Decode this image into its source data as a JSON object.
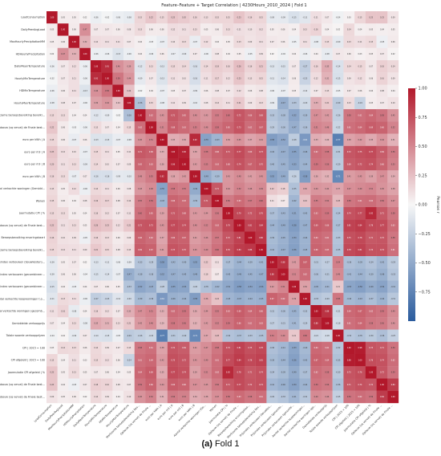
{
  "chart_data": {
    "type": "heatmap",
    "title": "Feature–Feature + Target Correlation | 4230Hours_2010_2024 | Fold 1",
    "rows": [
      "LoadConsumption",
      "DailyPeerAvgLoad",
      "MaxHourlyPrecipitationMM",
      "HDHourlyPrecipitation",
      "DailyMeanTemperature",
      "HourlyMinTemperature",
      "HDMinTemperature",
      "HourlyMaxTemperature",
      "Werkzame beroepsbevolking bevolkingsomvang",
      "Opbouw (sq verval) de Finale bestedingen/Finaal & volumegemiddelde",
      "euro per kWh | A",
      "euro per m3 | A",
      "euro per m3 | B",
      "euro per kWh | B",
      "Aantal verkochte woningen (Gemiddelde) t.o.v. een jaar eerder",
      "Wonen",
      "Jaarmutatie CPI | %",
      "Opbouw (sq verval) de Finale bestedingen (Finale) bestedingen (Bruto) van...",
      "Beroepsbevolking ervaringskaart",
      "Werkzame beroepsbevolking bevolkingsomvang %",
      "Prijsindex verbouwen (bouwkosten) bestaande koopwoningen",
      "Prijsindex verbouwen (gecombineerd) t.o.v. voorgaande periode",
      "Prijsindex verbouwen (gecombineerd) t.o.v. een jaar eerder",
      "Aantal verkochte koopwoningen t.o.v. voorgaande periode",
      "Aantal verkochte woningen (gecombineerd) t.o.v. een jaar eerder",
      "Gemiddelde verkoopprijs",
      "Totale waarde verkoopprijzen",
      "CPI | 2015 = 100",
      "CPI afgeleid | 2015 = 100",
      "Jaarmutatie CPI afgeleid | %",
      "Opbouw (sq verval) de Finale bestedingen (a) (echtnaar ren) Finale bestedingen",
      "Opbouw (sq verval) de Finale bestedingen (echtnaar) van Finale bestedingen"
    ],
    "columns": [
      "LoadConsumption",
      "DailyPeerAvgLoad",
      "MaxHourlyPrecipitationMM",
      "HDHourlyPrecipitation",
      "DailyMeanTemperature",
      "HourlyMinTemperature",
      "HDMinTemperature",
      "HourlyMaxTemperature",
      "Werkzame beroepsbevolking bevolkingsomvang",
      "Opbouw (sq verval) de Finale bestedingen/Finaal & volumegemiddelde",
      "euro per kWh | A",
      "euro per m3 | A",
      "euro per m3 | B",
      "euro per kWh | B",
      "Aantal verkochte woningen (Gemiddelde) t.o.v. een jaar eerder",
      "Wonen",
      "Jaarmutatie CPI | %",
      "Opbouw (sq verval) de Finale bestedingen (Finale) bestedingen (Bruto) van...",
      "Beroepsbevolking ervaringskaart",
      "Werkzame beroepsbevolking bevolkingsomvang %",
      "Prijsindex verbouwen (bouwkosten) bestaande koopwoningen",
      "Prijsindex verbouwen (gecombineerd) t.o.v. voorgaande periode",
      "Prijsindex verbouwen (gecombineerd) t.o.v. een jaar eerder",
      "Aantal verkochte koopwoningen t.o.v. voorgaande periode",
      "Aantal verkochte woningen (gecombineerd) t.o.v. een jaar eerder",
      "Gemiddelde verkoopprijs",
      "Totale waarde verkoopprijzen",
      "CPI | 2015 = 100",
      "CPI afgeleid | 2015 = 100",
      "Jaarmutatie CPI afgeleid | %",
      "Opbouw (sq verval) de Finale bestedingen (a) (echtnaar ren) Finale bestedingen",
      "Opbouw (sq verval) de Finale bestedingen (echtnaar) van Finale bestedingen"
    ],
    "values": [
      [
        1.0,
        0.05,
        0.05,
        0.02,
        -0.06,
        -0.02,
        -0.06,
        -0.08,
        0.15,
        0.22,
        0.15,
        0.23,
        0.2,
        0.16,
        0.13,
        0.15,
        0.15,
        0.23,
        0.16,
        0.15,
        -0.09,
        -0.09,
        -0.15,
        -0.11,
        0.11,
        0.07,
        -0.04,
        0.03,
        0.15,
        0.23,
        0.23,
        0.09
      ],
      [
        0.05,
        1.0,
        0.06,
        0.47,
        0.07,
        0.07,
        0.06,
        0.08,
        0.13,
        0.06,
        0.06,
        0.12,
        0.11,
        0.13,
        0.05,
        0.06,
        0.13,
        0.11,
        0.1,
        0.12,
        0.05,
        0.06,
        0.04,
        0.13,
        0.16,
        0.04,
        0.02,
        0.14,
        0.04,
        0.05,
        0.04,
        0.05
      ],
      [
        0.05,
        0.06,
        1.0,
        0.32,
        0.12,
        0.11,
        0.11,
        0.07,
        0.04,
        -0.03,
        -0.07,
        0.1,
        0.13,
        -0.07,
        0.12,
        0.04,
        0.05,
        0.13,
        0.09,
        0.11,
        0.07,
        0.06,
        -0.05,
        0.11,
        -0.08,
        0.13,
        -0.09,
        0.13,
        0.11,
        0.13,
        -0.05,
        0.06
      ],
      [
        0.02,
        0.47,
        0.32,
        1.0,
        -0.06,
        -0.06,
        -0.13,
        -0.06,
        0.04,
        -0.06,
        0.06,
        -0.07,
        -0.09,
        0.07,
        -0.06,
        0.08,
        0.04,
        0.05,
        -0.05,
        0.09,
        0.02,
        -0.04,
        0.04,
        -0.06,
        0.04,
        -0.08,
        0.07,
        0.06,
        0.03,
        0.05,
        0.07,
        0.02
      ],
      [
        -0.06,
        0.07,
        0.12,
        -0.06,
        1.0,
        0.91,
        0.46,
        0.39,
        -0.12,
        0.13,
        -0.13,
        0.15,
        0.14,
        -0.16,
        0.14,
        0.19,
        0.16,
        0.26,
        0.16,
        0.21,
        -0.13,
        -0.15,
        0.07,
        -0.27,
        0.16,
        0.35,
        -0.14,
        0.14,
        0.15,
        0.07,
        0.18,
        0.14
      ],
      [
        -0.02,
        0.07,
        0.11,
        -0.06,
        0.91,
        1.0,
        0.58,
        0.44,
        -0.09,
        0.07,
        -0.13,
        0.11,
        0.1,
        -0.16,
        0.11,
        0.17,
        0.12,
        0.23,
        0.13,
        0.15,
        -0.11,
        -0.14,
        0.06,
        -0.23,
        0.12,
        0.31,
        -0.15,
        0.09,
        0.12,
        0.06,
        0.16,
        0.09
      ],
      [
        -0.06,
        0.06,
        0.11,
        -0.13,
        0.46,
        0.58,
        1.0,
        0.24,
        -0.02,
        0.04,
        -0.07,
        0.05,
        0.07,
        -0.09,
        0.06,
        0.08,
        0.07,
        0.12,
        0.06,
        0.08,
        -0.06,
        -0.07,
        0.05,
        -0.12,
        0.07,
        0.13,
        -0.05,
        0.07,
        0.06,
        0.04,
        0.08,
        0.04
      ],
      [
        -0.08,
        0.08,
        0.07,
        -0.06,
        0.39,
        0.44,
        0.24,
        1.0,
        -0.36,
        0.15,
        -0.08,
        0.11,
        0.09,
        -0.1,
        0.08,
        0.14,
        0.11,
        0.21,
        0.09,
        0.13,
        -0.09,
        -0.47,
        -0.33,
        -0.2,
        0.33,
        0.21,
        -0.29,
        0.13,
        -0.24,
        0.05,
        0.07,
        0.1
      ],
      [
        0.15,
        0.13,
        0.04,
        0.04,
        -0.12,
        -0.09,
        -0.02,
        -0.36,
        1.0,
        0.62,
        0.45,
        0.71,
        0.65,
        0.48,
        0.43,
        0.55,
        0.6,
        0.72,
        0.66,
        0.69,
        -0.33,
        -0.38,
        -0.52,
        -0.39,
        0.47,
        0.42,
        -0.26,
        0.58,
        0.61,
        0.64,
        0.59,
        0.45
      ],
      [
        0.22,
        0.06,
        -0.03,
        -0.06,
        0.13,
        0.07,
        0.04,
        0.15,
        0.62,
        1.0,
        0.51,
        0.68,
        0.63,
        0.55,
        0.48,
        0.59,
        0.65,
        0.73,
        0.62,
        0.67,
        -0.29,
        -0.36,
        -0.47,
        -0.36,
        0.51,
        0.48,
        -0.22,
        0.61,
        0.64,
        0.69,
        0.66,
        0.52
      ],
      [
        0.15,
        0.06,
        -0.07,
        0.06,
        -0.13,
        -0.13,
        -0.07,
        -0.08,
        0.45,
        0.51,
        1.0,
        0.33,
        0.36,
        0.92,
        -0.55,
        -0.43,
        0.39,
        0.45,
        0.37,
        0.41,
        -0.58,
        -0.52,
        -0.28,
        -0.61,
        0.33,
        0.29,
        -0.77,
        0.38,
        0.42,
        0.35,
        0.44,
        0.31
      ],
      [
        0.23,
        0.12,
        0.1,
        -0.07,
        0.15,
        0.11,
        0.05,
        0.11,
        0.71,
        0.68,
        0.33,
        1.0,
        0.96,
        0.38,
        0.58,
        0.66,
        0.71,
        0.77,
        0.69,
        0.73,
        -0.42,
        -0.47,
        -0.55,
        -0.46,
        0.62,
        0.58,
        -0.31,
        0.72,
        0.75,
        0.77,
        0.69,
        0.56
      ],
      [
        0.2,
        0.11,
        0.13,
        -0.09,
        0.14,
        0.1,
        0.07,
        0.09,
        0.65,
        0.63,
        0.36,
        0.96,
        1.0,
        0.42,
        0.55,
        0.63,
        0.68,
        0.74,
        0.67,
        0.7,
        -0.4,
        -0.45,
        -0.53,
        -0.44,
        0.59,
        0.56,
        -0.29,
        0.69,
        0.72,
        0.74,
        0.66,
        0.53
      ],
      [
        0.16,
        0.13,
        -0.07,
        0.07,
        -0.16,
        -0.16,
        -0.09,
        -0.1,
        0.48,
        0.55,
        0.92,
        0.38,
        0.42,
        1.0,
        -0.49,
        -0.39,
        0.43,
        0.48,
        0.41,
        0.45,
        -0.55,
        -0.49,
        -0.26,
        -0.58,
        0.36,
        0.32,
        -0.71,
        0.41,
        0.45,
        0.39,
        0.47,
        0.34
      ],
      [
        0.13,
        0.05,
        0.12,
        -0.06,
        0.14,
        0.11,
        0.06,
        0.08,
        0.43,
        0.48,
        -0.55,
        0.58,
        0.55,
        -0.49,
        1.0,
        0.71,
        0.44,
        0.52,
        0.46,
        0.49,
        0.22,
        0.18,
        -0.35,
        0.36,
        0.44,
        0.42,
        0.37,
        0.47,
        0.49,
        0.51,
        0.45,
        0.38
      ],
      [
        0.15,
        0.06,
        0.04,
        0.08,
        0.19,
        0.17,
        0.08,
        0.14,
        0.55,
        0.59,
        -0.43,
        0.66,
        0.63,
        -0.39,
        0.71,
        1.0,
        0.56,
        0.63,
        0.57,
        0.6,
        0.11,
        0.07,
        -0.42,
        0.24,
        0.55,
        0.52,
        0.28,
        0.58,
        0.61,
        0.62,
        0.56,
        0.47
      ],
      [
        0.15,
        0.13,
        0.05,
        0.04,
        0.16,
        0.12,
        0.07,
        0.11,
        0.6,
        0.65,
        0.39,
        0.71,
        0.68,
        0.43,
        0.44,
        0.56,
        1.0,
        0.79,
        0.72,
        0.76,
        -0.37,
        -0.43,
        -0.51,
        -0.43,
        0.63,
        0.59,
        -0.34,
        0.74,
        0.77,
        0.92,
        0.71,
        0.58
      ],
      [
        0.23,
        0.11,
        0.13,
        0.05,
        0.26,
        0.23,
        0.12,
        0.21,
        0.72,
        0.73,
        0.45,
        0.77,
        0.74,
        0.48,
        0.52,
        0.63,
        0.79,
        1.0,
        0.81,
        0.84,
        -0.44,
        -0.49,
        -0.58,
        -0.47,
        0.69,
        0.66,
        -0.37,
        0.81,
        0.84,
        0.78,
        0.77,
        0.63
      ],
      [
        0.16,
        0.1,
        0.09,
        -0.05,
        0.16,
        0.13,
        0.06,
        0.09,
        0.66,
        0.62,
        0.37,
        0.69,
        0.67,
        0.41,
        0.46,
        0.57,
        0.72,
        0.81,
        1.0,
        0.86,
        -0.39,
        -0.45,
        -0.54,
        -0.44,
        0.64,
        0.61,
        -0.33,
        0.75,
        0.78,
        0.71,
        0.72,
        0.58
      ],
      [
        0.15,
        0.12,
        0.11,
        0.09,
        0.21,
        0.15,
        0.08,
        0.13,
        0.69,
        0.67,
        0.41,
        0.73,
        0.7,
        0.45,
        0.49,
        0.6,
        0.76,
        0.84,
        0.86,
        1.0,
        -0.41,
        -0.47,
        -0.56,
        -0.45,
        0.66,
        0.63,
        -0.35,
        0.78,
        0.81,
        0.74,
        0.74,
        0.61
      ],
      [
        -0.09,
        0.05,
        0.07,
        0.02,
        -0.13,
        -0.11,
        -0.06,
        -0.09,
        -0.33,
        -0.29,
        -0.58,
        -0.42,
        -0.4,
        -0.55,
        0.22,
        0.11,
        -0.37,
        -0.44,
        -0.39,
        -0.41,
        1.0,
        0.88,
        0.42,
        0.67,
        -0.31,
        -0.27,
        0.54,
        -0.36,
        -0.39,
        -0.34,
        -0.41,
        -0.29
      ],
      [
        -0.09,
        0.06,
        0.06,
        -0.04,
        -0.15,
        -0.14,
        -0.07,
        -0.47,
        -0.38,
        -0.36,
        -0.52,
        -0.47,
        -0.45,
        -0.49,
        0.18,
        0.07,
        -0.43,
        -0.49,
        -0.45,
        -0.47,
        0.88,
        1.0,
        0.51,
        0.62,
        -0.36,
        -0.31,
        0.49,
        -0.41,
        -0.44,
        -0.39,
        -0.46,
        -0.33
      ],
      [
        -0.15,
        0.04,
        -0.05,
        0.04,
        0.07,
        0.06,
        0.05,
        -0.33,
        -0.52,
        -0.47,
        -0.28,
        -0.55,
        -0.53,
        -0.26,
        -0.35,
        -0.42,
        -0.51,
        -0.58,
        -0.54,
        -0.56,
        0.42,
        0.51,
        1.0,
        0.39,
        -0.45,
        -0.41,
        0.21,
        -0.53,
        -0.56,
        -0.49,
        -0.54,
        -0.41
      ],
      [
        -0.11,
        0.13,
        0.11,
        -0.06,
        -0.27,
        -0.23,
        -0.12,
        -0.2,
        -0.39,
        -0.36,
        -0.61,
        -0.46,
        -0.44,
        -0.58,
        0.36,
        0.24,
        -0.43,
        -0.47,
        -0.44,
        -0.45,
        0.67,
        0.62,
        0.39,
        1.0,
        -0.33,
        -0.29,
        0.58,
        -0.4,
        -0.43,
        -0.37,
        -0.44,
        -0.31
      ],
      [
        0.11,
        0.16,
        -0.08,
        0.04,
        0.16,
        0.12,
        0.07,
        0.33,
        0.47,
        0.51,
        0.33,
        0.62,
        0.59,
        0.36,
        0.44,
        0.55,
        0.63,
        0.69,
        0.64,
        0.66,
        -0.31,
        -0.36,
        -0.45,
        -0.33,
        1.0,
        0.88,
        -0.21,
        0.64,
        0.67,
        0.62,
        0.59,
        0.49
      ],
      [
        0.07,
        0.04,
        0.13,
        -0.08,
        0.35,
        0.31,
        0.13,
        0.21,
        0.42,
        0.48,
        0.29,
        0.58,
        0.56,
        0.32,
        0.42,
        0.52,
        0.59,
        0.66,
        0.61,
        0.63,
        -0.27,
        -0.31,
        -0.41,
        -0.29,
        0.88,
        1.0,
        -0.18,
        0.61,
        0.64,
        0.58,
        0.56,
        0.46
      ],
      [
        -0.04,
        0.02,
        -0.09,
        0.07,
        -0.14,
        -0.15,
        -0.05,
        -0.29,
        -0.26,
        -0.22,
        -0.77,
        -0.31,
        -0.29,
        -0.71,
        0.37,
        0.28,
        -0.34,
        -0.37,
        -0.33,
        -0.35,
        0.54,
        0.49,
        0.21,
        0.58,
        -0.21,
        -0.18,
        1.0,
        -0.32,
        -0.35,
        -0.3,
        -0.36,
        -0.25
      ],
      [
        0.03,
        0.14,
        0.13,
        0.06,
        0.14,
        0.09,
        0.07,
        0.13,
        0.58,
        0.61,
        0.38,
        0.72,
        0.69,
        0.41,
        0.47,
        0.58,
        0.74,
        0.81,
        0.75,
        0.78,
        -0.36,
        -0.41,
        -0.53,
        -0.4,
        0.64,
        0.61,
        -0.32,
        1.0,
        0.98,
        0.73,
        0.71,
        0.59
      ],
      [
        0.15,
        0.04,
        0.11,
        0.03,
        0.15,
        0.12,
        0.06,
        -0.24,
        0.61,
        0.64,
        0.42,
        0.75,
        0.72,
        0.45,
        0.49,
        0.61,
        0.77,
        0.84,
        0.78,
        0.81,
        -0.39,
        -0.44,
        -0.56,
        -0.43,
        0.67,
        0.64,
        -0.35,
        0.98,
        1.0,
        0.76,
        0.74,
        0.62
      ],
      [
        0.23,
        0.05,
        0.13,
        0.05,
        0.07,
        0.06,
        0.04,
        0.05,
        0.64,
        0.69,
        0.35,
        0.77,
        0.74,
        0.39,
        0.51,
        0.62,
        0.92,
        0.78,
        0.71,
        0.74,
        -0.34,
        -0.39,
        -0.49,
        -0.37,
        0.62,
        0.58,
        -0.3,
        0.73,
        0.76,
        1.0,
        0.72,
        0.59
      ],
      [
        0.23,
        0.04,
        -0.05,
        0.07,
        0.18,
        0.16,
        0.08,
        0.07,
        0.59,
        0.66,
        0.44,
        0.69,
        0.66,
        0.47,
        0.45,
        0.56,
        0.71,
        0.77,
        0.72,
        0.74,
        -0.41,
        -0.46,
        -0.54,
        -0.44,
        0.59,
        0.56,
        -0.36,
        0.71,
        0.74,
        0.72,
        1.0,
        0.84
      ],
      [
        0.09,
        0.05,
        0.06,
        0.02,
        0.14,
        0.09,
        0.04,
        0.1,
        0.45,
        0.52,
        0.31,
        0.56,
        0.53,
        0.34,
        0.38,
        0.47,
        0.58,
        0.63,
        0.58,
        0.61,
        -0.29,
        -0.33,
        -0.41,
        -0.31,
        0.49,
        0.46,
        -0.25,
        0.59,
        0.62,
        0.59,
        0.84,
        1.0
      ]
    ],
    "vmin": -1.0,
    "vmax": 1.0,
    "colormap": "diverging blue-white-red",
    "colors": {
      "negative": "#2b5c9e",
      "neutral": "#f7f7f7",
      "positive": "#b2182b"
    },
    "colorbar": {
      "label": "Pearson r",
      "ticks": [
        1.0,
        0.75,
        0.5,
        0.25,
        0.0,
        -0.25,
        -0.5,
        -0.75
      ],
      "tick_labels": [
        "1.00",
        "0.75",
        "0.50",
        "0.25",
        "0.00",
        "−0.25",
        "−0.50",
        "−0.75"
      ]
    }
  },
  "caption": {
    "label": "(a)",
    "text": " Fold 1"
  }
}
